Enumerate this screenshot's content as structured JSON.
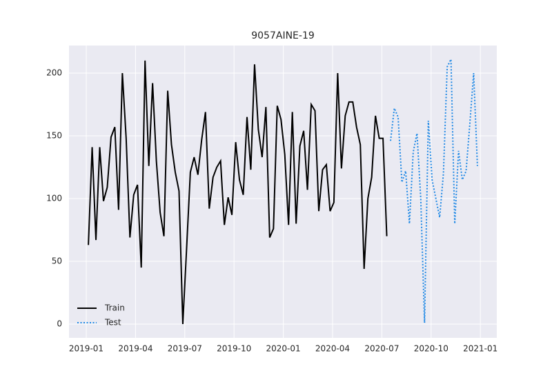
{
  "chart_data": {
    "type": "line",
    "title": "9057AINE-19",
    "series": [
      {
        "name": "Train",
        "color": "#000000",
        "style": "solid",
        "x": [
          0.13,
          0.36,
          0.59,
          0.82,
          1.05,
          1.28,
          1.51,
          1.74,
          1.97,
          2.2,
          2.43,
          2.66,
          2.89,
          3.12,
          3.35,
          3.58,
          3.81,
          4.04,
          4.27,
          4.5,
          4.73,
          4.96,
          5.19,
          5.42,
          5.65,
          5.88,
          6.11,
          6.34,
          6.57,
          6.8,
          7.03,
          7.26,
          7.49,
          7.72,
          7.95,
          8.18,
          8.41,
          8.64,
          8.87,
          9.1,
          9.33,
          9.56,
          9.79,
          10.02,
          10.25,
          10.48,
          10.71,
          10.94,
          11.17,
          11.4,
          11.63,
          11.86,
          12.09,
          12.32,
          12.55,
          12.78,
          13.01,
          13.24,
          13.47,
          13.7,
          13.93,
          14.16,
          14.39,
          14.62,
          14.85,
          15.08,
          15.31,
          15.54,
          15.77,
          16,
          16.23,
          16.46,
          16.69,
          16.92,
          17.15,
          17.38,
          17.61,
          17.84,
          18.07,
          18.3
        ],
        "values": [
          63,
          141,
          67,
          141,
          98,
          109,
          149,
          157,
          91,
          200,
          148,
          69,
          103,
          111,
          45,
          210,
          126,
          192,
          130,
          89,
          70,
          186,
          143,
          121,
          106,
          0,
          60,
          121,
          133,
          119,
          147,
          169,
          92,
          117,
          125,
          130,
          79,
          101,
          87,
          145,
          115,
          103,
          165,
          123,
          207,
          155,
          133,
          173,
          69,
          76,
          174,
          163,
          135,
          79,
          169,
          80,
          142,
          154,
          107,
          175,
          170,
          90,
          123,
          127,
          90,
          97,
          200,
          124,
          166,
          177,
          177,
          157,
          143,
          44,
          100,
          117,
          166,
          148,
          148,
          70
        ]
      },
      {
        "name": "Test",
        "color": "#1e88e5",
        "style": "dotted",
        "x": [
          18.53,
          18.76,
          18.99,
          19.22,
          19.45,
          19.68,
          19.91,
          20.14,
          20.37,
          20.6,
          20.83,
          21.06,
          21.29,
          21.52,
          21.75,
          21.98,
          22.21,
          22.44,
          22.67,
          22.9,
          23.13,
          23.36,
          23.59,
          23.82
        ],
        "values": [
          146,
          172,
          165,
          113,
          122,
          80,
          137,
          152,
          100,
          1,
          162,
          115,
          100,
          85,
          120,
          205,
          211,
          80,
          138,
          115,
          122,
          160,
          200,
          126
        ]
      }
    ],
    "xlim": [
      -1.05,
      25.0
    ],
    "xticks": [
      {
        "value": 0,
        "label": "2019-01"
      },
      {
        "value": 3,
        "label": "2019-04"
      },
      {
        "value": 6,
        "label": "2019-07"
      },
      {
        "value": 9,
        "label": "2019-10"
      },
      {
        "value": 12,
        "label": "2020-01"
      },
      {
        "value": 15,
        "label": "2020-04"
      },
      {
        "value": 18,
        "label": "2020-07"
      },
      {
        "value": 21,
        "label": "2020-10"
      },
      {
        "value": 24,
        "label": "2021-01"
      }
    ],
    "ylim": [
      -11,
      222
    ],
    "yticks": [
      0,
      50,
      100,
      150,
      200
    ],
    "grid": true,
    "legend": "lower left"
  }
}
